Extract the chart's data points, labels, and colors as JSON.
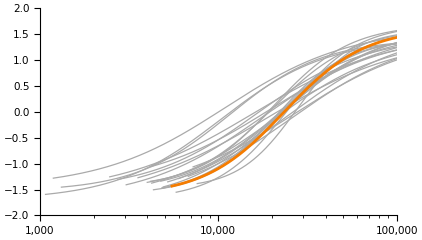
{
  "xlim": [
    1000,
    100000
  ],
  "ylim": [
    -2.0,
    2.0
  ],
  "yticks": [
    -2.0,
    -1.5,
    -1.0,
    -0.5,
    0.0,
    0.5,
    1.0,
    1.5,
    2.0
  ],
  "xtick_positions": [
    1000,
    10000,
    100000
  ],
  "xtick_labels": [
    "1,000",
    "10,000",
    "100,000"
  ],
  "gray_color": "#aaaaaa",
  "orange_color": "#f57c00",
  "bg_color": "#ffffff",
  "gray_lw": 0.9,
  "orange_lw": 2.0,
  "n_gray_lines": 22,
  "seed": 42,
  "figsize": [
    4.22,
    2.4
  ],
  "dpi": 100
}
